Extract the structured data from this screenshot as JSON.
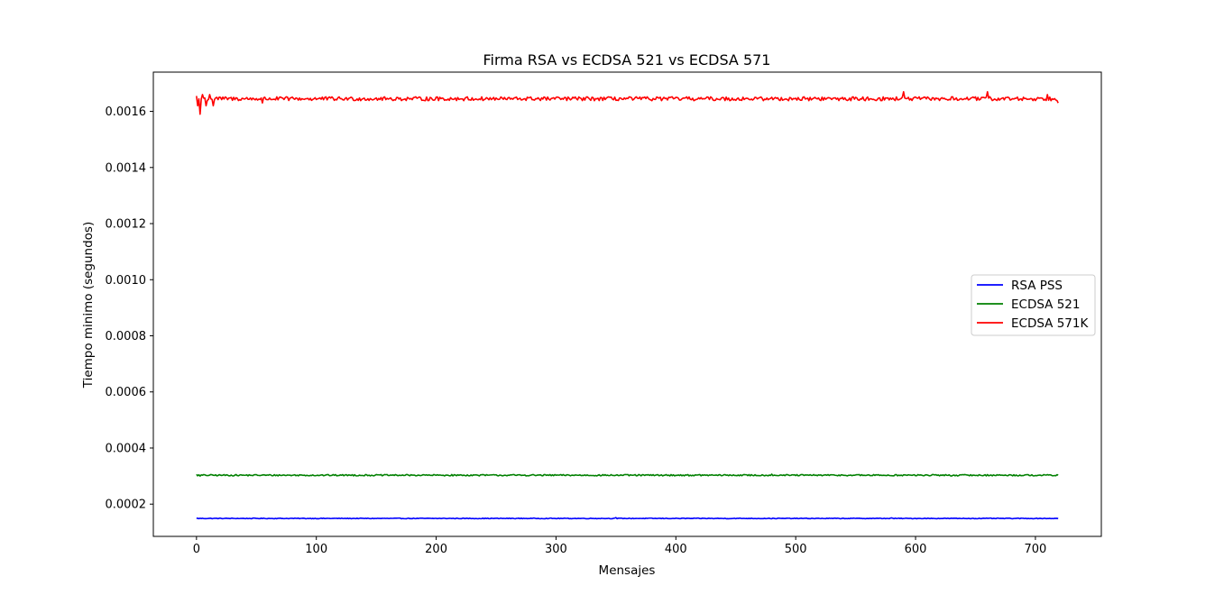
{
  "chart_data": {
    "type": "line",
    "title": "Firma RSA vs ECDSA 521 vs ECDSA 571",
    "xlabel": "Mensajes",
    "ylabel": "Tiempo minimo (segundos)",
    "xlim": [
      -36,
      755
    ],
    "ylim": [
      8.5e-05,
      0.00174
    ],
    "xticks": [
      0,
      100,
      200,
      300,
      400,
      500,
      600,
      700
    ],
    "yticks": [
      0.0002,
      0.0004,
      0.0006,
      0.0008,
      0.001,
      0.0012,
      0.0014,
      0.0016
    ],
    "ytick_labels": [
      "0.0002",
      "0.0004",
      "0.0006",
      "0.0008",
      "0.0010",
      "0.0012",
      "0.0014",
      "0.0016"
    ],
    "legend_position": "center-right",
    "grid": false,
    "x_range": [
      0,
      719
    ],
    "series": [
      {
        "name": "RSA PSS",
        "color": "#0000ff",
        "base": 0.000149,
        "noise": 1.2e-06,
        "points": [
          [
            0,
            0.00015
          ],
          [
            350,
            0.000152
          ],
          [
            580,
            0.000151
          ],
          [
            719,
            0.000148
          ]
        ]
      },
      {
        "name": "ECDSA 521",
        "color": "#008000",
        "base": 0.000303,
        "noise": 2.5e-06,
        "points": [
          [
            0,
            0.000306
          ],
          [
            3,
            0.0003
          ],
          [
            130,
            0.000305
          ],
          [
            480,
            0.000307
          ],
          [
            630,
            0.0003
          ],
          [
            719,
            0.000303
          ]
        ]
      },
      {
        "name": "ECDSA 571K",
        "color": "#ff0000",
        "base": 0.001645,
        "noise": 7e-06,
        "points": [
          [
            0,
            0.001655
          ],
          [
            1,
            0.00162
          ],
          [
            3,
            0.00159
          ],
          [
            5,
            0.00166
          ],
          [
            8,
            0.00162
          ],
          [
            11,
            0.00166
          ],
          [
            14,
            0.00162
          ],
          [
            17,
            0.00165
          ],
          [
            55,
            0.00163
          ],
          [
            590,
            0.00167
          ],
          [
            660,
            0.00167
          ],
          [
            710,
            0.00166
          ],
          [
            719,
            0.00163
          ]
        ]
      }
    ]
  }
}
